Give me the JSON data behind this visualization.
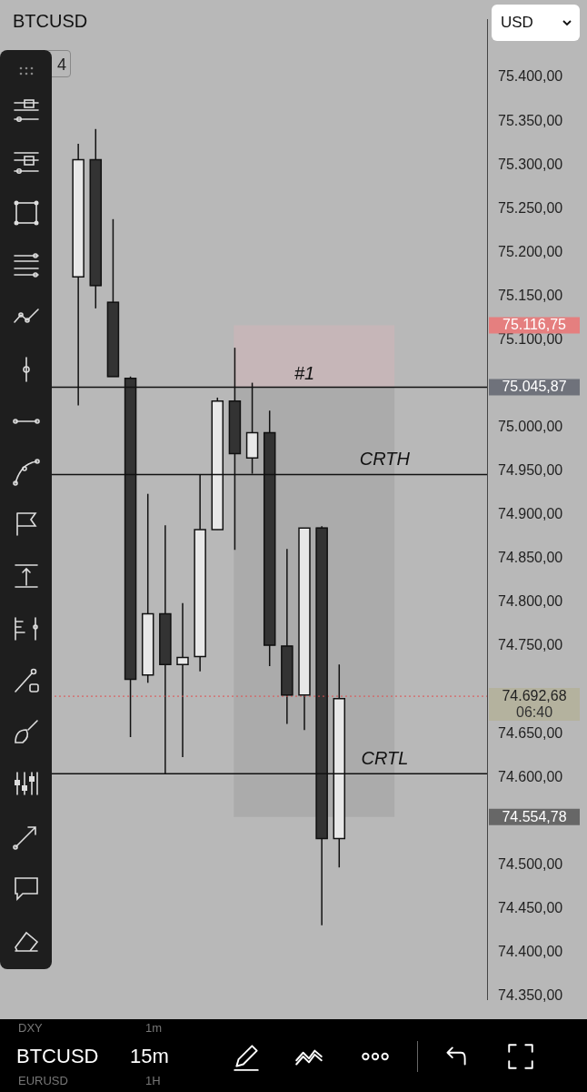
{
  "chart_data": {
    "type": "candlestick",
    "title": "BTCUSD",
    "categories": [
      null,
      null,
      null,
      null,
      null,
      null,
      null,
      null,
      null,
      null,
      null,
      null,
      null,
      null,
      null,
      null,
      null,
      null,
      null,
      null,
      null,
      null,
      null,
      null,
      null,
      null,
      null,
      null
    ],
    "ohlc": [
      null,
      null,
      null,
      null,
      [
        75172,
        75324,
        75025,
        75306
      ],
      [
        75306,
        75341,
        75136,
        75162
      ],
      [
        75143,
        75238,
        75058,
        75058
      ],
      [
        75056,
        75058,
        74646,
        74712
      ],
      [
        74717,
        74924,
        74708,
        74787
      ],
      [
        74787,
        74888,
        74604,
        74729
      ],
      [
        74729,
        74799,
        74623,
        74737
      ],
      [
        74738,
        74946,
        74721,
        74883
      ],
      [
        74883,
        75034,
        74883,
        75030
      ],
      [
        75030,
        75091,
        74860,
        74970
      ],
      [
        74965,
        75051,
        74947,
        74994
      ],
      [
        74994,
        75019,
        74727,
        74751
      ],
      [
        74750,
        74861,
        74661,
        74694
      ],
      [
        74694,
        74885,
        74654,
        74885
      ],
      [
        74885,
        74887,
        74431,
        74530
      ],
      [
        74530,
        74729,
        74497,
        74690
      ],
      null,
      null,
      null,
      null,
      null,
      null,
      null,
      null
    ],
    "colors": [
      null,
      null,
      null,
      null,
      "#e8e8e8",
      "#333333",
      "#333333",
      "#333333",
      "#e8e8e8",
      "#333333",
      "#e8e8e8",
      "#e8e8e8",
      "#e8e8e8",
      "#333333",
      "#e8e8e8",
      "#333333",
      "#333333",
      "#e8e8e8",
      "#333333",
      "#e8e8e8",
      null,
      null,
      null,
      null,
      null,
      null,
      null,
      null
    ],
    "ylim": [
      74346,
      75466
    ],
    "yticks": [
      {
        "value": 74350,
        "label": "74.350,00"
      },
      {
        "value": 74400,
        "label": "74.400,00"
      },
      {
        "value": 74450,
        "label": "74.450,00"
      },
      {
        "value": 74500,
        "label": "74.500,00"
      },
      {
        "value": 74600,
        "label": "74.600,00"
      },
      {
        "value": 74650,
        "label": "74.650,00"
      },
      {
        "value": 74750,
        "label": "74.750,00"
      },
      {
        "value": 74800,
        "label": "74.800,00"
      },
      {
        "value": 74850,
        "label": "74.850,00"
      },
      {
        "value": 74900,
        "label": "74.900,00"
      },
      {
        "value": 74950,
        "label": "74.950,00"
      },
      {
        "value": 75000,
        "label": "75.000,00"
      },
      {
        "value": 75100,
        "label": "75.100,00"
      },
      {
        "value": 75150,
        "label": "75.150,00"
      },
      {
        "value": 75200,
        "label": "75.200,00"
      },
      {
        "value": 75250,
        "label": "75.250,00"
      },
      {
        "value": 75300,
        "label": "75.300,00"
      },
      {
        "value": 75350,
        "label": "75.350,00"
      },
      {
        "value": 75400,
        "label": "75.400,00"
      }
    ],
    "tick_labels": "y",
    "grid": false,
    "bands": [
      {
        "axis": "y",
        "from": 75045.87,
        "to": 75116.75,
        "color": "#c6b6b8",
        "label": "#1"
      },
      {
        "axis": "y",
        "from": 74554.78,
        "to": 75045.87,
        "color": "#ababab"
      }
    ],
    "ref_lines": [
      {
        "axis": "y",
        "value": 75045.87,
        "color": "#111111",
        "line_style": "solid"
      },
      {
        "axis": "y",
        "value": 74946,
        "label": "CRTH",
        "color": "#111111",
        "line_style": "solid"
      },
      {
        "axis": "y",
        "value": 74604,
        "label": "CRTL",
        "color": "#111111",
        "line_style": "solid"
      },
      {
        "axis": "y",
        "value": 74692.68,
        "label": "74.692,68",
        "color": "#e05050",
        "line_style": "dotted"
      }
    ],
    "annotations": [
      "75.116,75",
      "75.045,87",
      "74.554,78",
      "06:40",
      "USD",
      "4",
      "DXY",
      "1m",
      "BTCUSD",
      "15m",
      "EURUSD",
      "1H"
    ]
  }
}
